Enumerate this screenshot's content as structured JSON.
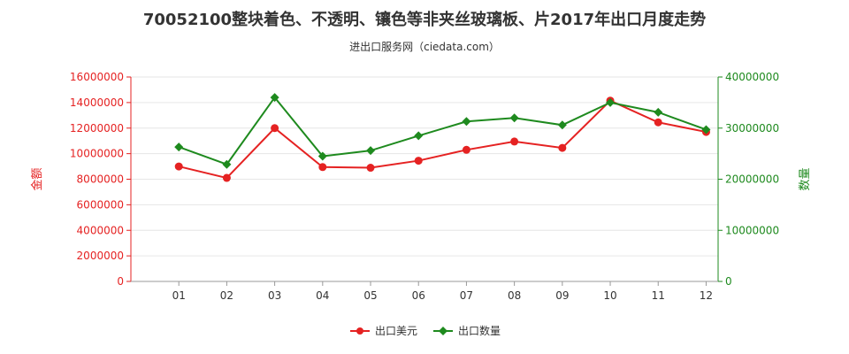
{
  "chart_data": {
    "type": "line",
    "title": "70052100整块着色、不透明、镶色等非夹丝玻璃板、片2017年出口月度走势",
    "subtitle": "进出口服务网（ciedata.com）",
    "categories": [
      "01",
      "02",
      "03",
      "04",
      "05",
      "06",
      "07",
      "08",
      "09",
      "10",
      "11",
      "12"
    ],
    "left_axis": {
      "label": "金额",
      "min": 0,
      "max": 16000000,
      "ticks": [
        "0",
        "2000000",
        "4000000",
        "6000000",
        "8000000",
        "10000000",
        "12000000",
        "14000000",
        "16000000"
      ],
      "color": "#e52222"
    },
    "right_axis": {
      "label": "数量",
      "min": 0,
      "max": 40000000,
      "ticks": [
        "0",
        "10000000",
        "20000000",
        "30000000",
        "40000000"
      ],
      "color": "#1e8a1e"
    },
    "series": [
      {
        "name": "出口美元",
        "axis": "left",
        "color": "#e52222",
        "marker": "circle",
        "values": [
          9000000,
          8100000,
          12000000,
          8950000,
          8900000,
          9450000,
          10300000,
          10950000,
          10450000,
          14150000,
          12450000,
          11700000
        ]
      },
      {
        "name": "出口数量",
        "axis": "right",
        "color": "#1e8a1e",
        "marker": "diamond",
        "values": [
          26300000,
          22900000,
          36000000,
          24500000,
          25600000,
          28500000,
          31300000,
          32000000,
          30600000,
          35000000,
          33100000,
          29700000
        ]
      }
    ],
    "watermark": "进出口服务网"
  }
}
